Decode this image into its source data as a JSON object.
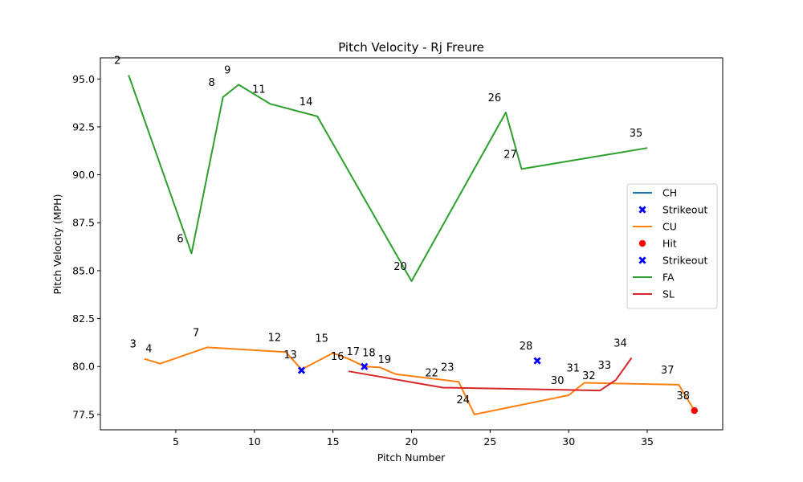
{
  "chart_data": {
    "type": "line",
    "title": "Pitch Velocity - Rj Freure",
    "xlabel": "Pitch Number",
    "ylabel": "Pitch Velocity (MPH)",
    "xlim": [
      0.2,
      39.8
    ],
    "ylim": [
      76.7,
      96.1
    ],
    "xticks": [
      5,
      10,
      15,
      20,
      25,
      30,
      35
    ],
    "yticks": [
      77.5,
      80.0,
      82.5,
      85.0,
      87.5,
      90.0,
      92.5,
      95.0
    ],
    "grid": false,
    "legend_position": "center-right",
    "series": [
      {
        "name": "CH",
        "color": "#1f77b4",
        "x": [],
        "y": []
      },
      {
        "name": "CU",
        "color": "#ff7f0e",
        "x": [
          3,
          4,
          7,
          12,
          13,
          15,
          16,
          17,
          18,
          19,
          22,
          23,
          24,
          30,
          31,
          37,
          38
        ],
        "y": [
          80.4,
          80.15,
          81.0,
          80.75,
          79.85,
          80.7,
          80.4,
          80.0,
          79.95,
          79.6,
          79.3,
          79.2,
          77.5,
          78.5,
          79.15,
          79.05,
          77.7
        ]
      },
      {
        "name": "FA",
        "color": "#2ca02c",
        "x": [
          2,
          6,
          8,
          9,
          11,
          14,
          20,
          26,
          27,
          35
        ],
        "y": [
          95.2,
          85.9,
          94.05,
          94.7,
          93.7,
          93.05,
          84.45,
          93.25,
          90.3,
          91.4
        ]
      },
      {
        "name": "SL",
        "color": "#d62728",
        "x": [
          16,
          22,
          32,
          33,
          34
        ],
        "y": [
          79.75,
          78.9,
          78.75,
          79.3,
          80.45
        ]
      }
    ],
    "markers": [
      {
        "name": "Strikeout",
        "marker": "x",
        "color": "#0000ff",
        "x": [
          13
        ],
        "y": [
          79.8
        ]
      },
      {
        "name": "Hit",
        "marker": "circle",
        "color": "#ff0000",
        "x": [
          38
        ],
        "y": [
          77.7
        ]
      },
      {
        "name": "Strikeout",
        "marker": "x",
        "color": "#0000ff",
        "x": [
          17,
          28
        ],
        "y": [
          80.0,
          80.3
        ]
      }
    ],
    "annotations": [
      {
        "text": "2",
        "x": 2,
        "y": 95.2
      },
      {
        "text": "3",
        "x": 3,
        "y": 80.4
      },
      {
        "text": "4",
        "x": 4,
        "y": 80.15
      },
      {
        "text": "6",
        "x": 6,
        "y": 85.9
      },
      {
        "text": "7",
        "x": 7,
        "y": 81.0
      },
      {
        "text": "8",
        "x": 8,
        "y": 94.05
      },
      {
        "text": "9",
        "x": 9,
        "y": 94.7
      },
      {
        "text": "11",
        "x": 11,
        "y": 93.7
      },
      {
        "text": "12",
        "x": 12,
        "y": 80.75
      },
      {
        "text": "13",
        "x": 13,
        "y": 79.85
      },
      {
        "text": "14",
        "x": 14,
        "y": 93.05
      },
      {
        "text": "15",
        "x": 15,
        "y": 80.7
      },
      {
        "text": "16",
        "x": 16,
        "y": 79.75
      },
      {
        "text": "17",
        "x": 17,
        "y": 80.0
      },
      {
        "text": "18",
        "x": 18,
        "y": 79.95
      },
      {
        "text": "19",
        "x": 19,
        "y": 79.6
      },
      {
        "text": "20",
        "x": 20,
        "y": 84.45
      },
      {
        "text": "22",
        "x": 22,
        "y": 78.9
      },
      {
        "text": "23",
        "x": 23,
        "y": 79.2
      },
      {
        "text": "24",
        "x": 24,
        "y": 77.5
      },
      {
        "text": "26",
        "x": 26,
        "y": 93.25
      },
      {
        "text": "27",
        "x": 27,
        "y": 90.3
      },
      {
        "text": "28",
        "x": 28,
        "y": 80.3
      },
      {
        "text": "30",
        "x": 30,
        "y": 78.5
      },
      {
        "text": "31",
        "x": 31,
        "y": 79.15
      },
      {
        "text": "32",
        "x": 32,
        "y": 78.75
      },
      {
        "text": "33",
        "x": 33,
        "y": 79.3
      },
      {
        "text": "34",
        "x": 34,
        "y": 80.45
      },
      {
        "text": "35",
        "x": 35,
        "y": 91.4
      },
      {
        "text": "37",
        "x": 37,
        "y": 79.05
      },
      {
        "text": "38",
        "x": 38,
        "y": 77.7
      }
    ],
    "legend": [
      {
        "label": "CH",
        "kind": "line",
        "color": "#1f77b4"
      },
      {
        "label": "Strikeout",
        "kind": "x",
        "color": "#0000ff"
      },
      {
        "label": "CU",
        "kind": "line",
        "color": "#ff7f0e"
      },
      {
        "label": "Hit",
        "kind": "circle",
        "color": "#ff0000"
      },
      {
        "label": "Strikeout",
        "kind": "x",
        "color": "#0000ff"
      },
      {
        "label": "FA",
        "kind": "line",
        "color": "#2ca02c"
      },
      {
        "label": "SL",
        "kind": "line",
        "color": "#d62728"
      }
    ]
  }
}
